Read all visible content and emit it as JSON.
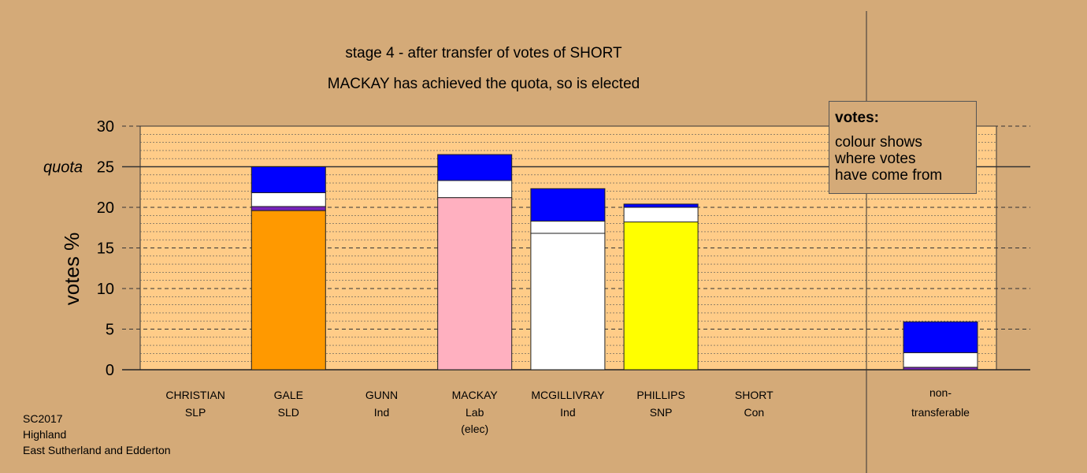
{
  "chart_data": {
    "type": "bar",
    "stacked": true,
    "title": "stage 4 - after transfer of votes of SHORT",
    "subtitle": "MACKAY has achieved the quota, so is elected",
    "ylabel": "votes %",
    "ylim": [
      0,
      30
    ],
    "yticks": [
      0,
      5,
      10,
      15,
      20,
      25,
      30
    ],
    "quota": 25,
    "quota_label": "quota",
    "grid": true,
    "candidates": [
      {
        "name": "CHRISTIAN",
        "party": "SLP",
        "note": "",
        "segments": []
      },
      {
        "name": "GALE",
        "party": "SLD",
        "note": "",
        "segments": [
          {
            "color": "#ff9900",
            "value": 19.6
          },
          {
            "color": "#7722bb",
            "value": 0.5
          },
          {
            "color": "#ffffff",
            "value": 1.7
          },
          {
            "color": "#0000ff",
            "value": 3.2
          }
        ]
      },
      {
        "name": "GUNN",
        "party": "Ind",
        "note": "",
        "segments": []
      },
      {
        "name": "MACKAY",
        "party": "Lab",
        "note": "(elec)",
        "segments": [
          {
            "color": "#ffb0c0",
            "value": 21.2
          },
          {
            "color": "#ffffff",
            "value": 2.1
          },
          {
            "color": "#0000ff",
            "value": 3.2
          }
        ]
      },
      {
        "name": "MCGILLIVRAY",
        "party": "Ind",
        "note": "",
        "segments": [
          {
            "color": "#ffffff",
            "value": 16.8
          },
          {
            "color": "#ffffff",
            "value": 1.5
          },
          {
            "color": "#0000ff",
            "value": 4.0
          }
        ]
      },
      {
        "name": "PHILLIPS",
        "party": "SNP",
        "note": "",
        "segments": [
          {
            "color": "#ffff00",
            "value": 18.2
          },
          {
            "color": "#ffffff",
            "value": 1.8
          },
          {
            "color": "#0000ff",
            "value": 0.4
          }
        ]
      },
      {
        "name": "SHORT",
        "party": "Con",
        "note": "",
        "segments": []
      }
    ],
    "nontransferable": {
      "label1": "non-",
      "label2": "transferable",
      "segments": [
        {
          "color": "#7722bb",
          "value": 0.3
        },
        {
          "color": "#ffffff",
          "value": 1.8
        },
        {
          "color": "#0000ff",
          "value": 3.8
        }
      ]
    },
    "legend": {
      "title": "votes:",
      "lines": [
        "colour shows",
        "where votes",
        "have come from"
      ]
    }
  },
  "footer": {
    "line1": "SC2017",
    "line2": "Highland",
    "line3": "East Sutherland and Edderton"
  },
  "colors": {
    "background": "#d4aa78",
    "plot_area": "#ffcc88"
  }
}
